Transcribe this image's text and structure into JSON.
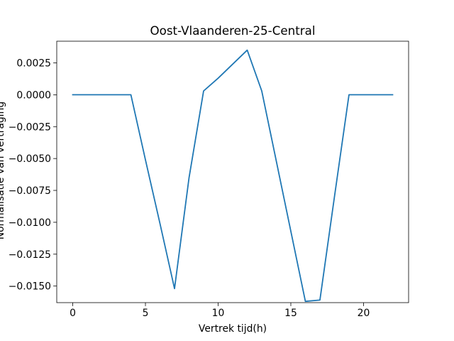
{
  "chart_data": {
    "type": "line",
    "title": "Oost-Vlaanderen-25-Central",
    "xlabel": "Vertrek tijd(h)",
    "ylabel": "Normalisatie van vertraging",
    "xlim": [
      -1.1,
      23.1
    ],
    "ylim": [
      -0.0163,
      0.0042
    ],
    "x_ticks": [
      0,
      5,
      10,
      15,
      20
    ],
    "x_tick_labels": [
      "0",
      "5",
      "10",
      "15",
      "20"
    ],
    "y_ticks": [
      0.0025,
      0.0,
      -0.0025,
      -0.005,
      -0.0075,
      -0.01,
      -0.0125,
      -0.015
    ],
    "y_tick_labels": [
      "0.0025",
      "0.0000",
      "−0.0025",
      "−0.0050",
      "−0.0075",
      "−0.0100",
      "−0.0125",
      "−0.0150"
    ],
    "grid": false,
    "series": [
      {
        "color": "#1f77b4",
        "x": [
          0,
          1,
          2,
          3,
          4,
          5,
          6,
          7,
          8,
          9,
          10,
          11,
          12,
          13,
          14,
          15,
          16,
          17,
          18,
          19,
          20,
          21,
          22
        ],
        "y": [
          0,
          0,
          0,
          0,
          0,
          -0.0051,
          -0.0101,
          -0.0152,
          -0.0065,
          0.0003,
          0.0013,
          0.0024,
          0.0035,
          0.0003,
          -0.0052,
          -0.0107,
          -0.0162,
          -0.0161,
          -0.008,
          0,
          0,
          0,
          0
        ]
      }
    ]
  }
}
